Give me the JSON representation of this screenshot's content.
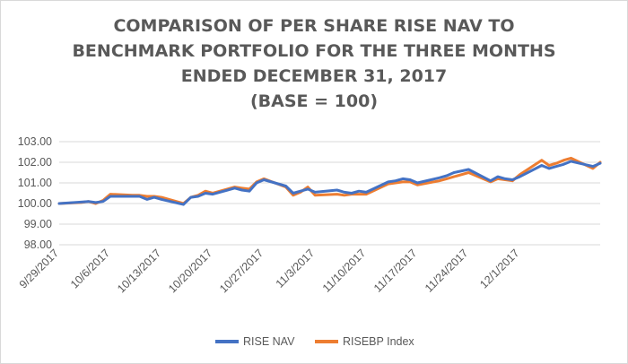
{
  "chart_data": {
    "type": "line",
    "title": [
      "COMPARISON OF PER SHARE RISE NAV TO",
      "BENCHMARK PORTFOLIO FOR THE THREE MONTHS",
      "ENDED DECEMBER 31, 2017",
      "(BASE = 100)"
    ],
    "xlabel": "",
    "ylabel": "",
    "ylim": [
      98,
      103
    ],
    "y_ticks": [
      "103.00",
      "102.00",
      "101.00",
      "100.00",
      "99.00",
      "98.00"
    ],
    "x_ticks": [
      "9/29/2017",
      "10/6/2017",
      "10/13/2017",
      "10/20/2017",
      "10/27/2017",
      "11/3/2017",
      "11/10/2017",
      "11/17/2017",
      "11/24/2017",
      "12/1/2017"
    ],
    "grid": true,
    "legend_position": "bottom",
    "series": [
      {
        "name": "RISE NAV",
        "color": "#4472C4",
        "points": [
          [
            "2017-09-29",
            100.0
          ],
          [
            "2017-10-02",
            100.07
          ],
          [
            "2017-10-03",
            100.1
          ],
          [
            "2017-10-04",
            100.05
          ],
          [
            "2017-10-05",
            100.1
          ],
          [
            "2017-10-06",
            100.35
          ],
          [
            "2017-10-09",
            100.35
          ],
          [
            "2017-10-10",
            100.35
          ],
          [
            "2017-10-11",
            100.2
          ],
          [
            "2017-10-12",
            100.3
          ],
          [
            "2017-10-13",
            100.2
          ],
          [
            "2017-10-16",
            99.95
          ],
          [
            "2017-10-17",
            100.3
          ],
          [
            "2017-10-18",
            100.35
          ],
          [
            "2017-10-19",
            100.5
          ],
          [
            "2017-10-20",
            100.45
          ],
          [
            "2017-10-23",
            100.75
          ],
          [
            "2017-10-24",
            100.65
          ],
          [
            "2017-10-25",
            100.6
          ],
          [
            "2017-10-26",
            101.0
          ],
          [
            "2017-10-27",
            101.15
          ],
          [
            "2017-10-30",
            100.85
          ],
          [
            "2017-10-31",
            100.5
          ],
          [
            "2017-11-01",
            100.6
          ],
          [
            "2017-11-02",
            100.7
          ],
          [
            "2017-11-03",
            100.55
          ],
          [
            "2017-11-06",
            100.65
          ],
          [
            "2017-11-07",
            100.55
          ],
          [
            "2017-11-08",
            100.5
          ],
          [
            "2017-11-09",
            100.6
          ],
          [
            "2017-11-10",
            100.55
          ],
          [
            "2017-11-13",
            101.05
          ],
          [
            "2017-11-14",
            101.1
          ],
          [
            "2017-11-15",
            101.2
          ],
          [
            "2017-11-16",
            101.15
          ],
          [
            "2017-11-17",
            101.0
          ],
          [
            "2017-11-20",
            101.25
          ],
          [
            "2017-11-21",
            101.35
          ],
          [
            "2017-11-22",
            101.5
          ],
          [
            "2017-11-24",
            101.65
          ],
          [
            "2017-11-27",
            101.1
          ],
          [
            "2017-11-28",
            101.3
          ],
          [
            "2017-11-29",
            101.2
          ],
          [
            "2017-11-30",
            101.15
          ],
          [
            "2017-12-01",
            101.3
          ],
          [
            "2017-12-04",
            101.85
          ],
          [
            "2017-12-05",
            101.7
          ],
          [
            "2017-12-06",
            101.8
          ],
          [
            "2017-12-07",
            101.9
          ],
          [
            "2017-12-08",
            102.05
          ],
          [
            "2017-12-11",
            101.8
          ],
          [
            "2017-12-12",
            101.95
          ]
        ]
      },
      {
        "name": "RISEBP Index",
        "color": "#ED7D31",
        "points": [
          [
            "2017-09-29",
            100.0
          ],
          [
            "2017-10-02",
            100.05
          ],
          [
            "2017-10-03",
            100.1
          ],
          [
            "2017-10-04",
            100.0
          ],
          [
            "2017-10-05",
            100.15
          ],
          [
            "2017-10-06",
            100.45
          ],
          [
            "2017-10-09",
            100.4
          ],
          [
            "2017-10-10",
            100.4
          ],
          [
            "2017-10-11",
            100.35
          ],
          [
            "2017-10-12",
            100.35
          ],
          [
            "2017-10-13",
            100.3
          ],
          [
            "2017-10-16",
            100.0
          ],
          [
            "2017-10-17",
            100.3
          ],
          [
            "2017-10-18",
            100.4
          ],
          [
            "2017-10-19",
            100.6
          ],
          [
            "2017-10-20",
            100.5
          ],
          [
            "2017-10-23",
            100.8
          ],
          [
            "2017-10-24",
            100.75
          ],
          [
            "2017-10-25",
            100.7
          ],
          [
            "2017-10-26",
            101.05
          ],
          [
            "2017-10-27",
            101.2
          ],
          [
            "2017-10-30",
            100.8
          ],
          [
            "2017-10-31",
            100.4
          ],
          [
            "2017-11-01",
            100.55
          ],
          [
            "2017-11-02",
            100.8
          ],
          [
            "2017-11-03",
            100.4
          ],
          [
            "2017-11-06",
            100.45
          ],
          [
            "2017-11-07",
            100.4
          ],
          [
            "2017-11-08",
            100.45
          ],
          [
            "2017-11-09",
            100.45
          ],
          [
            "2017-11-10",
            100.45
          ],
          [
            "2017-11-13",
            100.95
          ],
          [
            "2017-11-14",
            101.0
          ],
          [
            "2017-11-15",
            101.05
          ],
          [
            "2017-11-16",
            101.05
          ],
          [
            "2017-11-17",
            100.9
          ],
          [
            "2017-11-20",
            101.1
          ],
          [
            "2017-11-21",
            101.2
          ],
          [
            "2017-11-22",
            101.3
          ],
          [
            "2017-11-24",
            101.5
          ],
          [
            "2017-11-27",
            101.05
          ],
          [
            "2017-11-28",
            101.2
          ],
          [
            "2017-11-29",
            101.15
          ],
          [
            "2017-11-30",
            101.1
          ],
          [
            "2017-12-01",
            101.4
          ],
          [
            "2017-12-04",
            102.1
          ],
          [
            "2017-12-05",
            101.85
          ],
          [
            "2017-12-06",
            101.95
          ],
          [
            "2017-12-07",
            102.1
          ],
          [
            "2017-12-08",
            102.2
          ],
          [
            "2017-12-11",
            101.7
          ],
          [
            "2017-12-12",
            102.0
          ]
        ]
      }
    ]
  }
}
